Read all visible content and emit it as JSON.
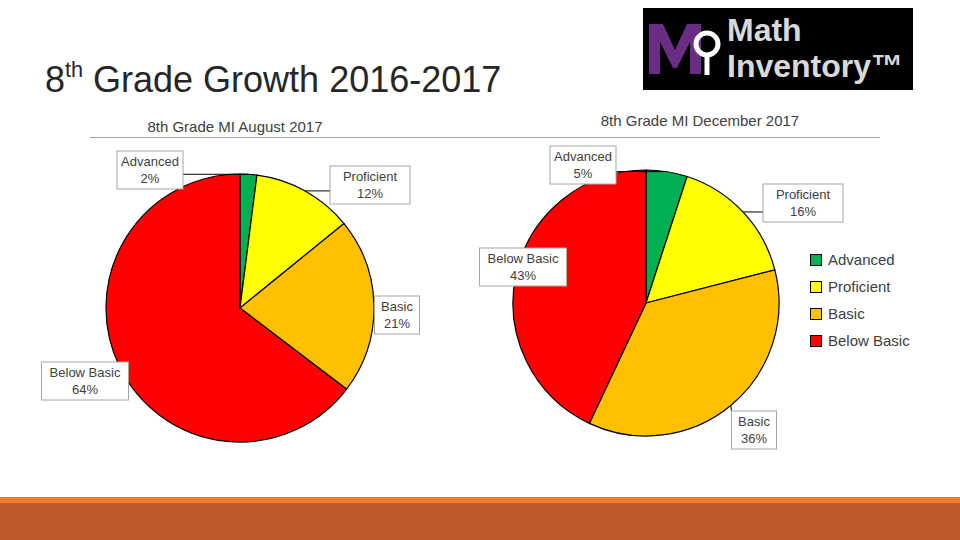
{
  "title": "8th Grade Growth 2016-2017",
  "logo": [
    "Math",
    "Inventory™"
  ],
  "chart_data": [
    {
      "type": "pie",
      "title": "8th Grade MI August 2017",
      "categories": [
        "Advanced",
        "Proficient",
        "Basic",
        "Below Basic"
      ],
      "values": [
        2,
        12,
        21,
        64
      ],
      "value_labels": [
        "2%",
        "12%",
        "21%",
        "64%"
      ],
      "colors": [
        "#00b050",
        "#ffff00",
        "#ffc000",
        "#ff0000"
      ],
      "data_labels": true
    },
    {
      "type": "pie",
      "title": "8th Grade MI December 2017",
      "categories": [
        "Advanced",
        "Proficient",
        "Basic",
        "Below Basic"
      ],
      "values": [
        5,
        16,
        36,
        43
      ],
      "value_labels": [
        "5%",
        "16%",
        "36%",
        "43%"
      ],
      "colors": [
        "#00b050",
        "#ffff00",
        "#ffc000",
        "#ff0000"
      ],
      "data_labels": true,
      "legend": "right"
    }
  ]
}
